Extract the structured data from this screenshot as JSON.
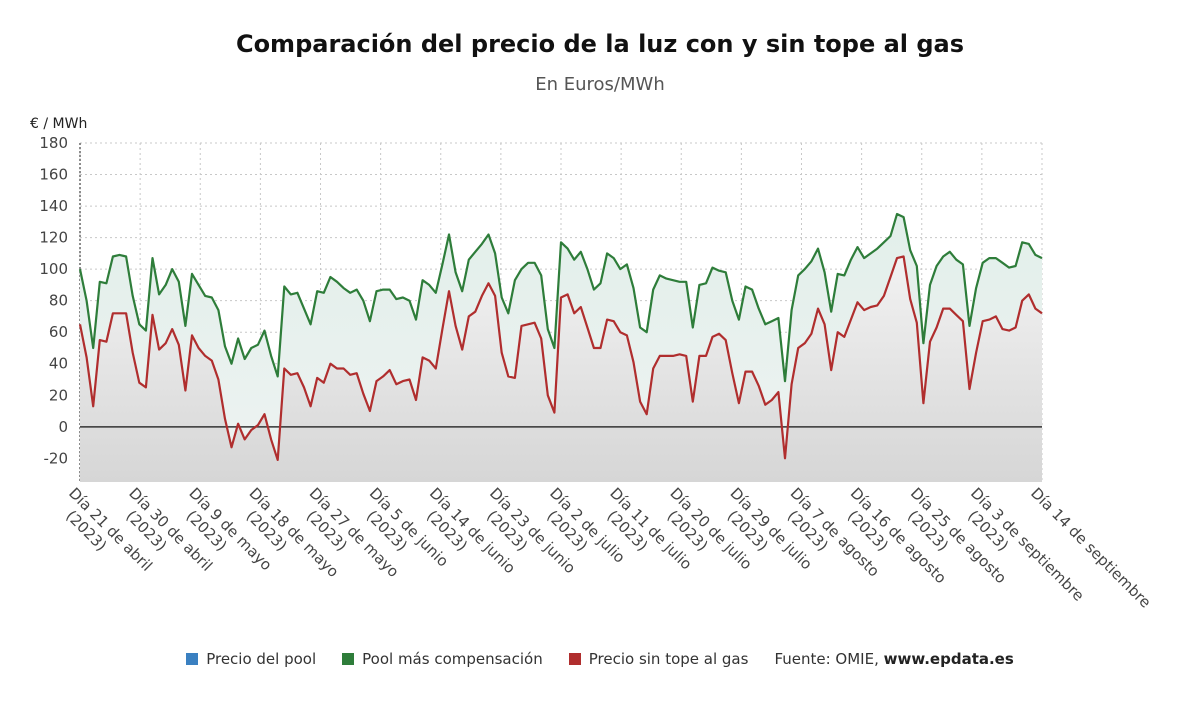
{
  "chart_data": {
    "type": "line",
    "title": "Comparación del precio de la luz con y sin tope al gas",
    "subtitle": "En Euros/MWh",
    "ylabel": "€ / MWh",
    "ylim": [
      -35,
      180
    ],
    "yticks": [
      -20,
      0,
      20,
      40,
      60,
      80,
      100,
      120,
      140,
      160,
      180
    ],
    "grid": true,
    "legend_position": "bottom",
    "x_tick_labels": [
      [
        "Día 21 de abril",
        "(2023)"
      ],
      [
        "Día 30 de abril",
        "(2023)"
      ],
      [
        "Día 9 de mayo",
        "(2023)"
      ],
      [
        "Día 18 de mayo",
        "(2023)"
      ],
      [
        "Día 27 de mayo",
        "(2023)"
      ],
      [
        "Día 5 de junio",
        "(2023)"
      ],
      [
        "Día 14 de junio",
        "(2023)"
      ],
      [
        "Día 23 de junio",
        "(2023)"
      ],
      [
        "Día 2 de julio",
        "(2023)"
      ],
      [
        "Día 11 de julio",
        "(2023)"
      ],
      [
        "Día 20 de julio",
        "(2023)"
      ],
      [
        "Día 29 de julio",
        "(2023)"
      ],
      [
        "Día 7 de agosto",
        "(2023)"
      ],
      [
        "Día 16 de agosto",
        "(2023)"
      ],
      [
        "Día 25 de agosto",
        "(2023)"
      ],
      [
        "Día 3 de septiembre",
        "(2023)"
      ],
      [
        "Día 14 de septiembre",
        ""
      ]
    ],
    "x_range": [
      "21 abril 2023",
      "14 septiembre 2023"
    ],
    "series": [
      {
        "name": "Precio del pool",
        "color": "#3a80c1",
        "values": []
      },
      {
        "name": "Pool más compensación",
        "color": "#2e7d3a",
        "values": [
          100,
          80,
          50,
          92,
          91,
          108,
          109,
          108,
          83,
          65,
          61,
          107,
          84,
          90,
          100,
          92,
          64,
          97,
          90,
          83,
          82,
          74,
          51,
          40,
          56,
          43,
          50,
          52,
          61,
          45,
          32,
          89,
          84,
          85,
          75,
          65,
          86,
          85,
          95,
          92,
          88,
          85,
          87,
          80,
          67,
          86,
          87,
          87,
          81,
          82,
          80,
          68,
          93,
          90,
          85,
          103,
          122,
          98,
          86,
          106,
          111,
          116,
          122,
          110,
          82,
          72,
          93,
          100,
          104,
          104,
          96,
          62,
          50,
          117,
          113,
          106,
          111,
          100,
          87,
          91,
          110,
          107,
          100,
          103,
          88,
          63,
          60,
          87,
          96,
          94,
          93,
          92,
          92,
          63,
          90,
          91,
          101,
          99,
          98,
          80,
          68,
          89,
          87,
          75,
          65,
          67,
          69,
          29,
          74,
          96,
          100,
          105,
          113,
          98,
          73,
          97,
          96,
          106,
          114,
          107,
          110,
          113,
          117,
          121,
          135,
          133,
          112,
          102,
          53,
          90,
          102,
          108,
          111,
          106,
          103,
          64,
          88,
          104,
          107,
          107,
          104,
          101,
          102,
          117,
          116,
          109,
          107
        ]
      },
      {
        "name": "Precio sin tope al gas",
        "color": "#b02e2e",
        "values": [
          65,
          44,
          13,
          55,
          54,
          72,
          72,
          72,
          47,
          28,
          25,
          71,
          49,
          53,
          62,
          52,
          23,
          58,
          50,
          45,
          42,
          30,
          5,
          -13,
          2,
          -8,
          -2,
          1,
          8,
          -8,
          -21,
          37,
          33,
          34,
          25,
          13,
          31,
          28,
          40,
          37,
          37,
          33,
          34,
          21,
          10,
          29,
          32,
          36,
          27,
          29,
          30,
          17,
          44,
          42,
          37,
          62,
          86,
          64,
          49,
          70,
          73,
          83,
          91,
          83,
          47,
          32,
          31,
          64,
          65,
          66,
          56,
          20,
          9,
          82,
          84,
          72,
          76,
          63,
          50,
          50,
          68,
          67,
          60,
          58,
          41,
          16,
          8,
          37,
          45,
          45,
          45,
          46,
          45,
          16,
          45,
          45,
          57,
          59,
          55,
          34,
          15,
          35,
          35,
          26,
          14,
          17,
          22,
          -20,
          27,
          50,
          53,
          59,
          75,
          65,
          36,
          60,
          57,
          68,
          79,
          74,
          76,
          77,
          83,
          95,
          107,
          108,
          81,
          66,
          15,
          54,
          63,
          75,
          75,
          71,
          67,
          24,
          47,
          67,
          68,
          70,
          62,
          61,
          63,
          80,
          84,
          75,
          72
        ]
      }
    ]
  },
  "legend": {
    "items": [
      {
        "label": "Precio del pool",
        "color": "#3a80c1"
      },
      {
        "label": "Pool más compensación",
        "color": "#2e7d3a"
      },
      {
        "label": "Precio sin tope al gas",
        "color": "#b02e2e"
      }
    ],
    "source_prefix": "Fuente: OMIE, ",
    "source_site": "www.epdata.es"
  }
}
